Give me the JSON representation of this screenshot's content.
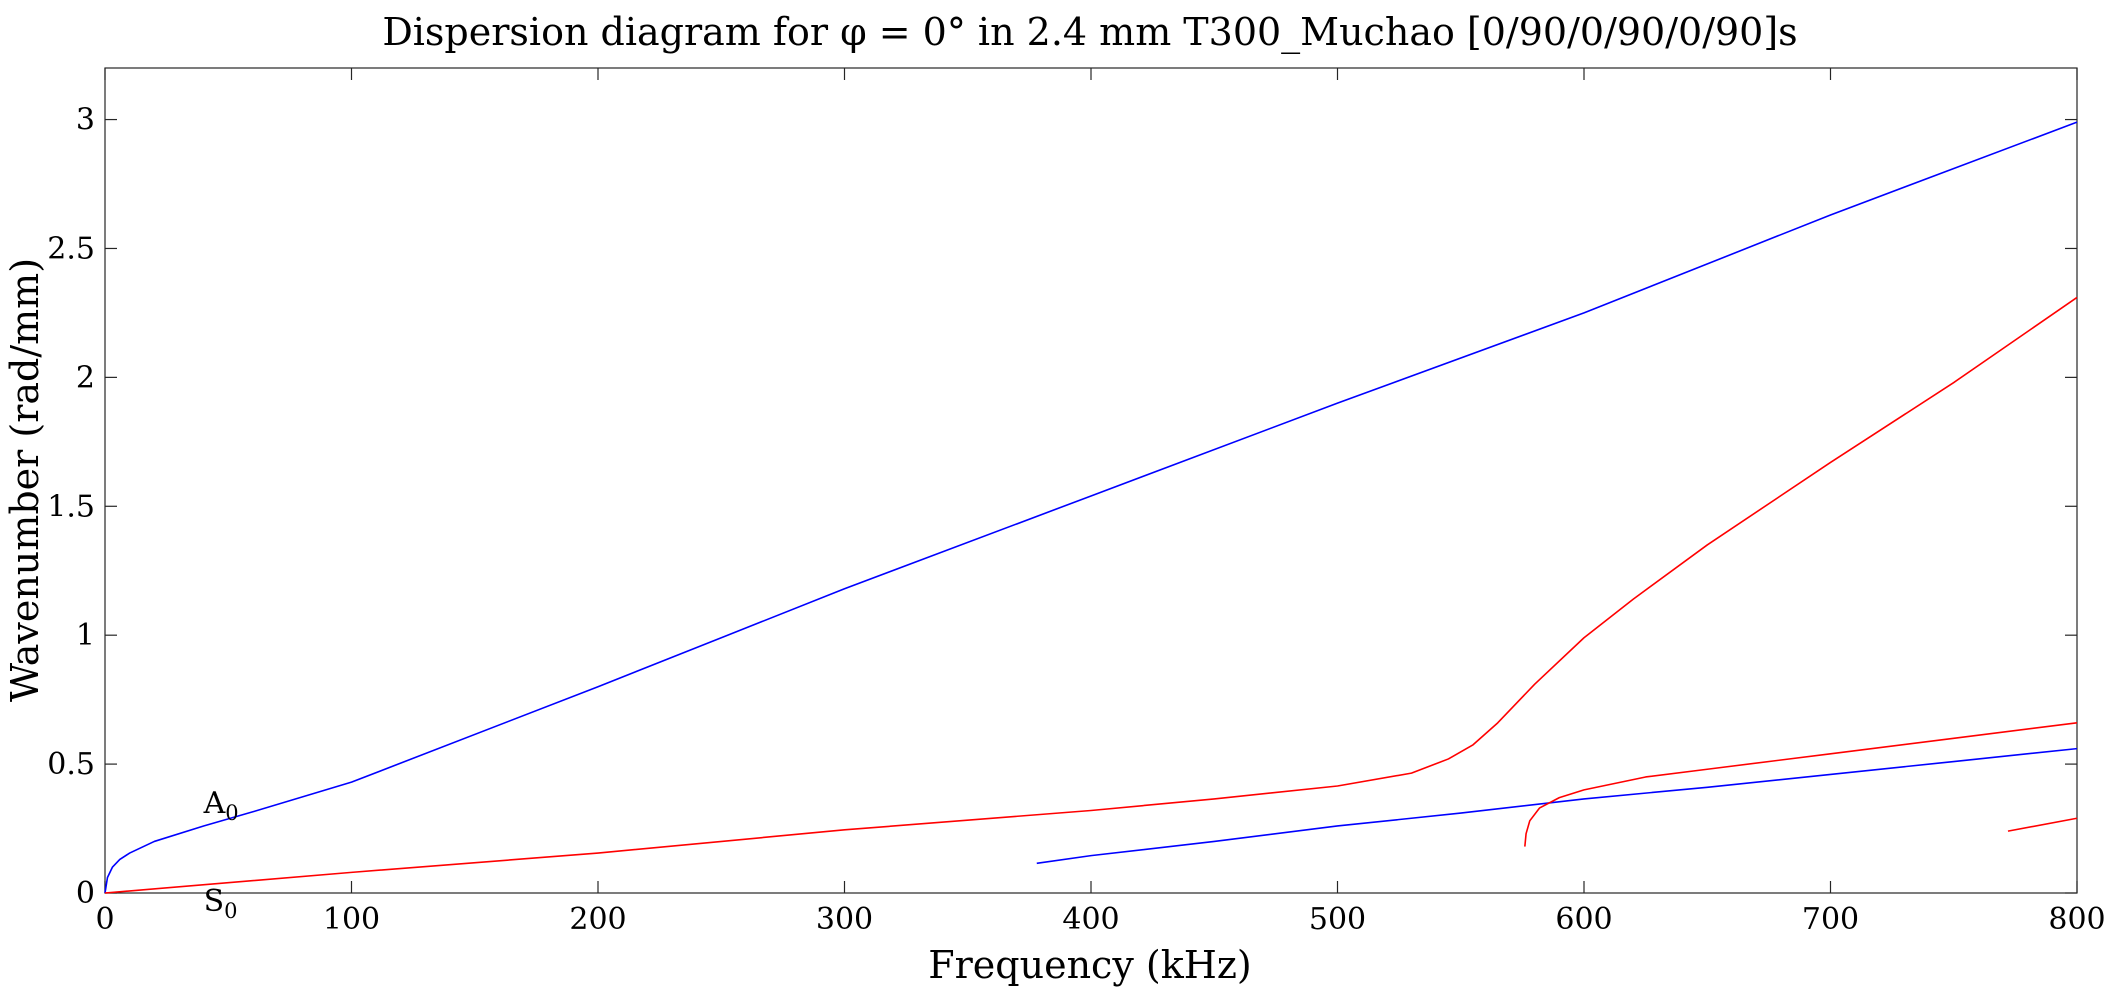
{
  "chart_data": {
    "type": "line",
    "title": "Dispersion diagram for φ = 0° in 2.4 mm T300_Muchao [0/90/0/90/0/90]s",
    "xlabel": "Frequency (kHz)",
    "ylabel": "Wavenumber (rad/mm)",
    "xlim": [
      0,
      800
    ],
    "ylim": [
      0,
      3.2
    ],
    "x_ticks": [
      0,
      100,
      200,
      300,
      400,
      500,
      600,
      700,
      800
    ],
    "y_ticks": [
      0,
      0.5,
      1,
      1.5,
      2,
      2.5,
      3
    ],
    "x_tick_labels": [
      "0",
      "100",
      "200",
      "300",
      "400",
      "500",
      "600",
      "700",
      "800"
    ],
    "y_tick_labels": [
      "0",
      "0.5",
      "1",
      "1.5",
      "2",
      "2.5",
      "3"
    ],
    "grid": false,
    "colors": {
      "blue": "#0000ff",
      "red": "#ff0000",
      "axis": "#262626"
    },
    "series": [
      {
        "color": "#0000ff",
        "points": [
          [
            0,
            0
          ],
          [
            1,
            0.06
          ],
          [
            3,
            0.1
          ],
          [
            6,
            0.13
          ],
          [
            10,
            0.155
          ],
          [
            20,
            0.2
          ],
          [
            40,
            0.26
          ],
          [
            60,
            0.315
          ],
          [
            100,
            0.43
          ],
          [
            200,
            0.8
          ],
          [
            300,
            1.18
          ],
          [
            400,
            1.54
          ],
          [
            500,
            1.9
          ],
          [
            600,
            2.25
          ],
          [
            700,
            2.63
          ],
          [
            800,
            2.99
          ]
        ]
      },
      {
        "color": "#ff0000",
        "points": [
          [
            0,
            0
          ],
          [
            100,
            0.08
          ],
          [
            200,
            0.155
          ],
          [
            300,
            0.245
          ],
          [
            400,
            0.32
          ],
          [
            450,
            0.365
          ],
          [
            500,
            0.415
          ],
          [
            530,
            0.465
          ],
          [
            545,
            0.52
          ],
          [
            555,
            0.575
          ],
          [
            565,
            0.66
          ],
          [
            580,
            0.81
          ],
          [
            600,
            0.99
          ],
          [
            620,
            1.14
          ],
          [
            650,
            1.35
          ],
          [
            700,
            1.67
          ],
          [
            750,
            1.98
          ],
          [
            800,
            2.31
          ]
        ]
      },
      {
        "color": "#0000ff",
        "points": [
          [
            378,
            0.115
          ],
          [
            400,
            0.145
          ],
          [
            450,
            0.2
          ],
          [
            500,
            0.26
          ],
          [
            550,
            0.31
          ],
          [
            600,
            0.365
          ],
          [
            650,
            0.41
          ],
          [
            700,
            0.46
          ],
          [
            750,
            0.51
          ],
          [
            800,
            0.56
          ]
        ]
      },
      {
        "color": "#ff0000",
        "points": [
          [
            576,
            0.18
          ],
          [
            576.5,
            0.23
          ],
          [
            578,
            0.28
          ],
          [
            582,
            0.33
          ],
          [
            590,
            0.37
          ],
          [
            600,
            0.4
          ],
          [
            625,
            0.45
          ],
          [
            650,
            0.48
          ],
          [
            700,
            0.54
          ],
          [
            750,
            0.6
          ],
          [
            800,
            0.66
          ]
        ]
      },
      {
        "color": "#ff0000",
        "points": [
          [
            772,
            0.24
          ],
          [
            800,
            0.29
          ]
        ]
      }
    ],
    "annotations": [
      {
        "text": "A",
        "sub": "0",
        "x": 40,
        "y": 0.31
      },
      {
        "text": "S",
        "sub": "0",
        "x": 40,
        "y": -0.07
      }
    ]
  }
}
